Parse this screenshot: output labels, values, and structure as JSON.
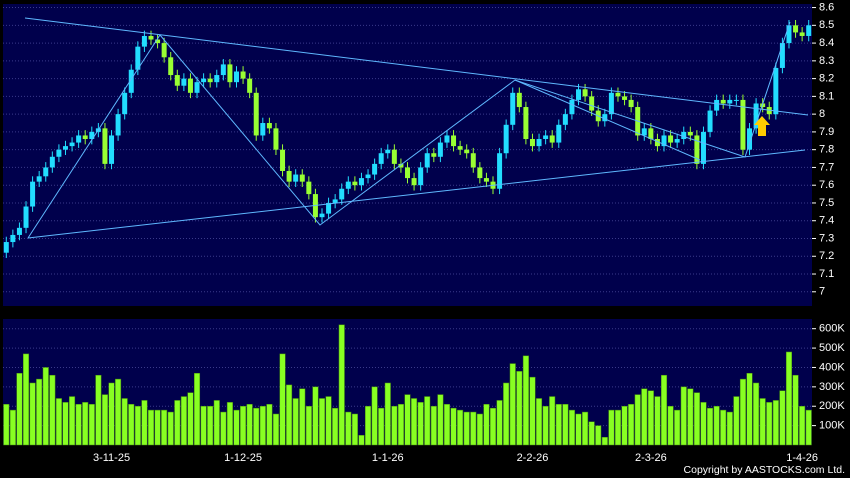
{
  "chart_data": {
    "type": "candlestick",
    "up_color": "#22ddff",
    "down_color": "#99ff33",
    "grid": true,
    "categories": [
      null,
      null,
      null,
      null,
      null,
      null,
      null,
      null,
      null,
      null,
      null,
      null,
      null,
      null,
      null,
      null,
      "3-11-25",
      null,
      null,
      null,
      null,
      null,
      null,
      null,
      null,
      null,
      null,
      null,
      null,
      null,
      null,
      null,
      null,
      null,
      null,
      null,
      "1-12-25",
      null,
      null,
      null,
      null,
      null,
      null,
      null,
      null,
      null,
      null,
      null,
      null,
      null,
      null,
      null,
      null,
      null,
      null,
      null,
      null,
      null,
      "1-1-26",
      null,
      null,
      null,
      null,
      null,
      null,
      null,
      null,
      null,
      null,
      null,
      null,
      null,
      null,
      null,
      null,
      null,
      null,
      null,
      null,
      null,
      "2-2-26",
      null,
      null,
      null,
      null,
      null,
      null,
      null,
      null,
      null,
      null,
      null,
      null,
      null,
      null,
      null,
      null,
      null,
      "2-3-26",
      null,
      null,
      null,
      null,
      null,
      null,
      null,
      null,
      null,
      null,
      null,
      null,
      null,
      null,
      null,
      null,
      null,
      null,
      null,
      null,
      null,
      null,
      "1-4-26",
      null
    ],
    "open": [
      7.22,
      7.28,
      7.32,
      7.36,
      7.48,
      7.62,
      7.65,
      7.7,
      7.76,
      7.8,
      7.82,
      7.84,
      7.88,
      7.86,
      7.9,
      7.92,
      7.72,
      7.88,
      8.0,
      8.12,
      8.25,
      8.38,
      8.44,
      8.42,
      8.4,
      8.32,
      8.22,
      8.16,
      8.2,
      8.12,
      8.18,
      8.2,
      8.18,
      8.22,
      8.28,
      8.18,
      8.24,
      8.2,
      8.12,
      7.88,
      7.95,
      7.92,
      7.8,
      7.68,
      7.62,
      7.66,
      7.62,
      7.55,
      7.42,
      7.44,
      7.5,
      7.52,
      7.58,
      7.62,
      7.6,
      7.64,
      7.66,
      7.72,
      7.78,
      7.8,
      7.72,
      7.7,
      7.64,
      7.6,
      7.7,
      7.78,
      7.76,
      7.84,
      7.88,
      7.82,
      7.8,
      7.78,
      7.7,
      7.64,
      7.62,
      7.58,
      7.78,
      7.94,
      8.12,
      8.04,
      7.86,
      7.82,
      7.86,
      7.88,
      7.84,
      7.94,
      8.0,
      8.08,
      8.14,
      8.1,
      8.02,
      7.96,
      8.0,
      8.12,
      8.1,
      8.08,
      8.04,
      7.88,
      7.92,
      7.86,
      7.82,
      7.88,
      7.84,
      7.86,
      7.9,
      7.88,
      7.72,
      7.9,
      8.02,
      8.08,
      8.06,
      8.08,
      8.08,
      7.8,
      7.92,
      8.06,
      8.04,
      8.0,
      8.26,
      8.4,
      8.5,
      8.46,
      8.44
    ],
    "high": [
      7.31,
      7.35,
      7.39,
      7.51,
      7.65,
      7.68,
      7.73,
      7.79,
      7.83,
      7.85,
      7.87,
      7.91,
      7.91,
      7.93,
      7.95,
      7.95,
      7.91,
      8.03,
      8.15,
      8.28,
      8.41,
      8.47,
      8.47,
      8.45,
      8.43,
      8.35,
      8.25,
      8.23,
      8.23,
      8.21,
      8.23,
      8.23,
      8.25,
      8.31,
      8.31,
      8.27,
      8.27,
      8.23,
      8.15,
      7.98,
      7.98,
      7.95,
      7.83,
      7.71,
      7.69,
      7.69,
      7.65,
      7.58,
      7.47,
      7.53,
      7.55,
      7.61,
      7.65,
      7.65,
      7.67,
      7.69,
      7.75,
      7.81,
      7.83,
      7.83,
      7.75,
      7.73,
      7.67,
      7.73,
      7.81,
      7.81,
      7.87,
      7.91,
      7.91,
      7.85,
      7.83,
      7.81,
      7.73,
      7.67,
      7.65,
      7.81,
      7.97,
      8.15,
      8.15,
      8.07,
      7.89,
      7.89,
      7.91,
      7.91,
      7.97,
      8.03,
      8.11,
      8.17,
      8.17,
      8.13,
      8.05,
      8.03,
      8.15,
      8.15,
      8.13,
      8.11,
      8.07,
      7.95,
      7.95,
      7.89,
      7.91,
      7.91,
      7.89,
      7.93,
      7.93,
      7.91,
      7.93,
      8.05,
      8.11,
      8.11,
      8.11,
      8.11,
      8.11,
      7.95,
      8.09,
      8.09,
      8.07,
      8.29,
      8.43,
      8.53,
      8.53,
      8.49,
      8.53
    ],
    "low": [
      7.19,
      7.25,
      7.29,
      7.33,
      7.45,
      7.59,
      7.62,
      7.67,
      7.73,
      7.77,
      7.79,
      7.81,
      7.83,
      7.83,
      7.87,
      7.69,
      7.69,
      7.85,
      7.97,
      8.09,
      8.22,
      8.35,
      8.39,
      8.37,
      8.29,
      8.19,
      8.13,
      8.13,
      8.09,
      8.09,
      8.15,
      8.15,
      8.15,
      8.19,
      8.15,
      8.15,
      8.17,
      8.09,
      7.85,
      7.85,
      7.89,
      7.77,
      7.65,
      7.59,
      7.59,
      7.59,
      7.52,
      7.39,
      7.39,
      7.41,
      7.47,
      7.49,
      7.55,
      7.57,
      7.57,
      7.61,
      7.63,
      7.69,
      7.75,
      7.69,
      7.67,
      7.61,
      7.57,
      7.57,
      7.67,
      7.73,
      7.73,
      7.81,
      7.79,
      7.77,
      7.75,
      7.67,
      7.61,
      7.59,
      7.55,
      7.55,
      7.75,
      7.91,
      8.01,
      7.83,
      7.79,
      7.79,
      7.83,
      7.81,
      7.81,
      7.91,
      7.97,
      8.05,
      8.07,
      7.99,
      7.93,
      7.93,
      7.97,
      8.07,
      8.05,
      8.01,
      7.85,
      7.85,
      7.83,
      7.79,
      7.79,
      7.81,
      7.81,
      7.83,
      7.85,
      7.69,
      7.69,
      7.87,
      7.99,
      8.03,
      8.03,
      8.05,
      7.77,
      7.77,
      7.89,
      8.01,
      7.97,
      7.97,
      8.23,
      8.37,
      8.43,
      8.41,
      8.41
    ],
    "close": [
      7.28,
      7.32,
      7.36,
      7.48,
      7.62,
      7.65,
      7.7,
      7.76,
      7.8,
      7.82,
      7.84,
      7.88,
      7.86,
      7.9,
      7.92,
      7.72,
      7.88,
      8.0,
      8.12,
      8.25,
      8.38,
      8.44,
      8.42,
      8.4,
      8.32,
      8.22,
      8.16,
      8.2,
      8.12,
      8.18,
      8.2,
      8.18,
      8.22,
      8.28,
      8.18,
      8.24,
      8.2,
      8.12,
      7.88,
      7.95,
      7.92,
      7.8,
      7.68,
      7.62,
      7.66,
      7.62,
      7.55,
      7.42,
      7.44,
      7.5,
      7.52,
      7.58,
      7.62,
      7.6,
      7.64,
      7.66,
      7.72,
      7.78,
      7.8,
      7.72,
      7.7,
      7.64,
      7.6,
      7.7,
      7.78,
      7.76,
      7.84,
      7.88,
      7.82,
      7.8,
      7.78,
      7.7,
      7.64,
      7.62,
      7.58,
      7.78,
      7.94,
      8.12,
      8.04,
      7.86,
      7.82,
      7.86,
      7.88,
      7.84,
      7.94,
      8.0,
      8.08,
      8.14,
      8.1,
      8.02,
      7.96,
      8.0,
      8.12,
      8.1,
      8.08,
      8.04,
      7.88,
      7.92,
      7.86,
      7.82,
      7.88,
      7.84,
      7.86,
      7.9,
      7.88,
      7.72,
      7.9,
      8.02,
      8.08,
      8.06,
      8.08,
      8.08,
      7.8,
      7.92,
      8.06,
      8.04,
      8.0,
      8.26,
      8.4,
      8.5,
      8.46,
      8.44,
      8.5
    ],
    "ylim": [
      6.92,
      8.62
    ],
    "yticks": [
      7,
      7.1,
      7.2,
      7.3,
      7.4,
      7.5,
      7.6,
      7.7,
      7.8,
      7.9,
      8,
      8.1,
      8.2,
      8.3,
      8.4,
      8.5,
      8.6
    ],
    "volume": {
      "color": "#88ff22",
      "values": [
        210000,
        180000,
        370000,
        470000,
        320000,
        340000,
        400000,
        360000,
        240000,
        220000,
        250000,
        210000,
        220000,
        210000,
        360000,
        260000,
        320000,
        340000,
        240000,
        210000,
        200000,
        230000,
        180000,
        180000,
        180000,
        170000,
        230000,
        250000,
        270000,
        370000,
        200000,
        200000,
        230000,
        170000,
        220000,
        180000,
        200000,
        210000,
        190000,
        200000,
        210000,
        160000,
        470000,
        310000,
        240000,
        290000,
        200000,
        300000,
        240000,
        250000,
        190000,
        620000,
        170000,
        160000,
        50000,
        200000,
        300000,
        190000,
        320000,
        200000,
        210000,
        260000,
        240000,
        220000,
        250000,
        200000,
        260000,
        210000,
        190000,
        180000,
        170000,
        170000,
        160000,
        210000,
        190000,
        230000,
        320000,
        420000,
        380000,
        460000,
        350000,
        240000,
        200000,
        250000,
        210000,
        210000,
        180000,
        160000,
        170000,
        120000,
        100000,
        40000,
        180000,
        180000,
        200000,
        210000,
        260000,
        290000,
        280000,
        250000,
        360000,
        200000,
        180000,
        300000,
        290000,
        270000,
        220000,
        190000,
        200000,
        180000,
        170000,
        250000,
        340000,
        370000,
        320000,
        240000,
        220000,
        230000,
        280000,
        480000,
        360000,
        200000,
        180000
      ],
      "ylim": [
        0,
        650000
      ],
      "yticks": [
        {
          "value": 100000,
          "label": "100K"
        },
        {
          "value": 200000,
          "label": "200K"
        },
        {
          "value": 300000,
          "label": "300K"
        },
        {
          "value": 400000,
          "label": "400K"
        },
        {
          "value": 500000,
          "label": "500K"
        },
        {
          "value": 600000,
          "label": "600K"
        }
      ]
    },
    "copyright": "Copyright by AASTOCKS.com Ltd."
  }
}
